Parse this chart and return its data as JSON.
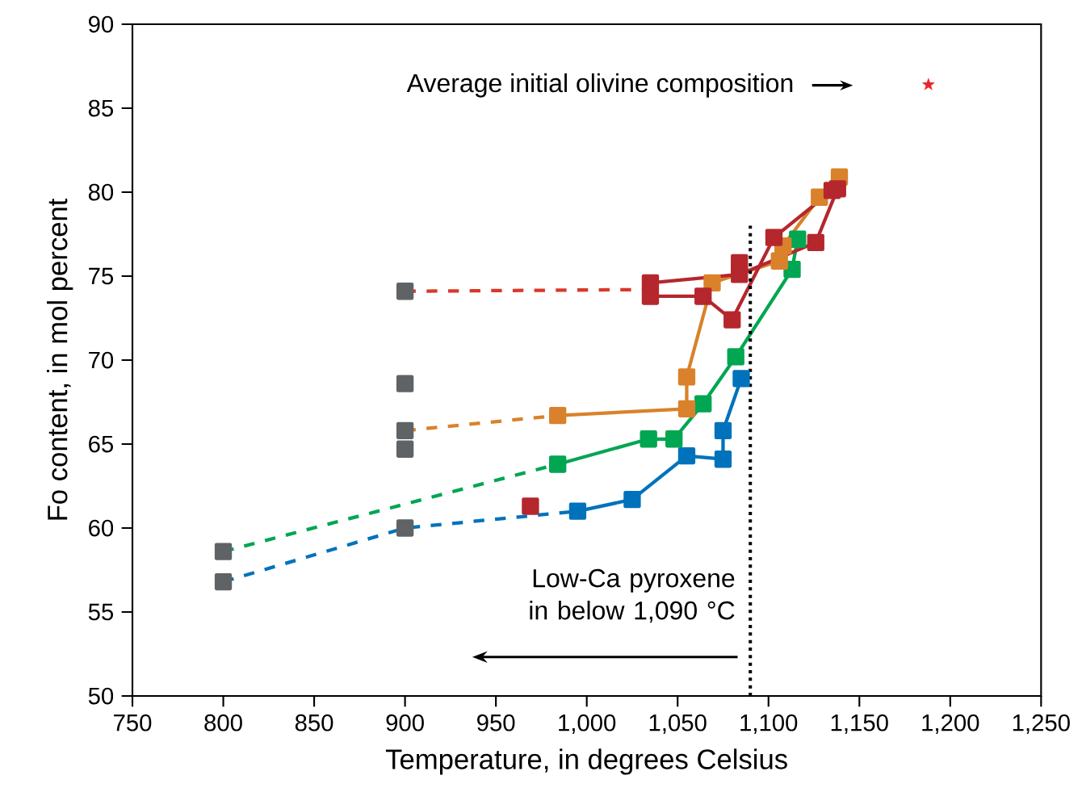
{
  "chart_data": {
    "type": "line",
    "xlabel": "Temperature, in degrees Celsius",
    "ylabel": "Fo content, in mol percent",
    "xlim": [
      750,
      1250
    ],
    "ylim": [
      50,
      90
    ],
    "xticks": [
      750,
      800,
      850,
      900,
      950,
      {
        "value": 1000,
        "label": "1,000"
      },
      {
        "value": 1050,
        "label": "1,050"
      },
      {
        "value": 1100,
        "label": "1,100"
      },
      {
        "value": 1150,
        "label": "1,150"
      },
      {
        "value": 1200,
        "label": "1,200"
      },
      {
        "value": 1250,
        "label": "1,250"
      }
    ],
    "yticks": [
      50,
      55,
      60,
      65,
      70,
      75,
      80,
      85,
      90
    ],
    "grid": false,
    "series": [
      {
        "color": "#0072bc",
        "line_style": "dashed",
        "x": [
          800,
          900,
          995
        ],
        "values": [
          56.8,
          60.0,
          61.0
        ]
      },
      {
        "color": "#00a651",
        "line_style": "dashed",
        "x": [
          800,
          984
        ],
        "values": [
          58.6,
          63.8
        ]
      },
      {
        "color": "#d9822b",
        "line_style": "dashed",
        "x": [
          900,
          984
        ],
        "values": [
          65.8,
          66.7
        ]
      },
      {
        "color": "#d8392b",
        "line_style": "dashed",
        "x": [
          900,
          1035
        ],
        "values": [
          74.1,
          74.2
        ]
      },
      {
        "color": "#0072bc",
        "line_style": "solid",
        "marker": "square",
        "x": [
          995,
          1025,
          1055,
          1075,
          1075,
          1085
        ],
        "values": [
          61.0,
          61.7,
          64.3,
          64.1,
          65.8,
          68.9
        ]
      },
      {
        "color": "#00a651",
        "line_style": "solid",
        "marker": "square",
        "x": [
          984,
          1034,
          1048,
          1064,
          1082,
          1113,
          1116
        ],
        "values": [
          63.8,
          65.3,
          65.3,
          67.4,
          70.2,
          75.4,
          77.2
        ]
      },
      {
        "color": "#d9822b",
        "line_style": "solid",
        "marker": "square",
        "x": [
          984,
          1055,
          1055,
          1069,
          1106,
          1108,
          1128,
          1139
        ],
        "values": [
          66.7,
          67.1,
          69.0,
          74.6,
          75.9,
          76.8,
          79.7,
          80.9
        ]
      },
      {
        "color": "#b5272d",
        "line_style": "solid",
        "marker": "square",
        "x": [
          1035,
          1084,
          1126,
          1138
        ],
        "values": [
          74.6,
          75.1,
          77.0,
          80.2
        ]
      },
      {
        "color": "#b5272d",
        "line_style": "solid",
        "marker": "square",
        "x": [
          1035,
          1064,
          1080,
          1103,
          1135
        ],
        "values": [
          73.8,
          73.8,
          72.4,
          77.3,
          80.1
        ]
      },
      {
        "type": "scatter",
        "color": "#b5272d",
        "marker": "square",
        "x": [
          969,
          1084
        ],
        "values": [
          61.3,
          75.8
        ]
      },
      {
        "type": "scatter",
        "color": "#5f6366",
        "marker": "square",
        "x": [
          800,
          800,
          900,
          900,
          900,
          900,
          900
        ],
        "values": [
          56.8,
          58.6,
          60.0,
          64.7,
          65.8,
          68.6,
          74.1
        ]
      },
      {
        "type": "scatter",
        "color": "#e8262c",
        "marker": "star",
        "x": [
          1188
        ],
        "values": [
          86.4
        ]
      }
    ],
    "ref_lines": [
      {
        "axis": "x",
        "value": 1090,
        "line_style": "dotted",
        "color": "#000000"
      }
    ],
    "annotations": [
      "Average initial olivine composition",
      "Low-Ca pyroxene in below 1,090 °C"
    ]
  }
}
